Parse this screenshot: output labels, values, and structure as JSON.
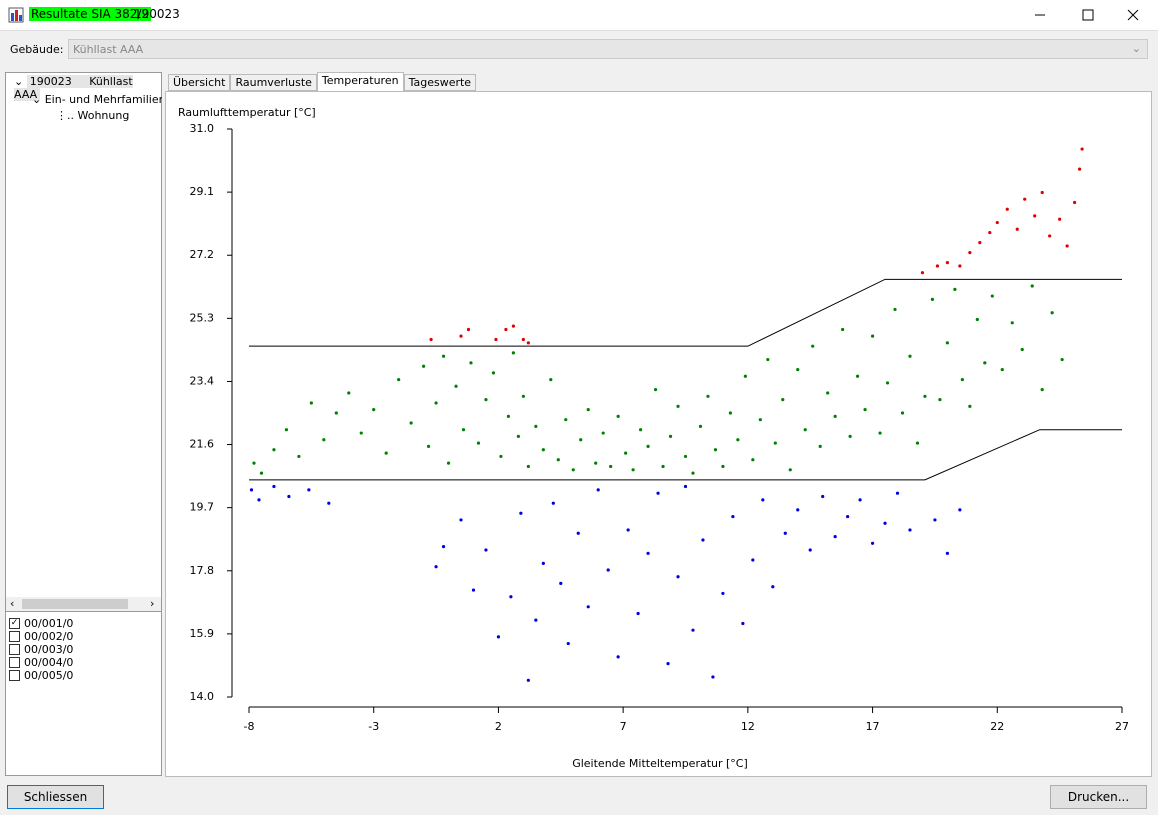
{
  "window": {
    "title_highlight": "Resultate SIA 382/2",
    "title_rest": "190023"
  },
  "building": {
    "label": "Gebäude:",
    "value": "Kühllast AAA"
  },
  "tree": {
    "root_id": "190023",
    "root_label": "Kühllast AAA",
    "child": "Ein- und Mehrfamilienhä",
    "leaf": "Wohnung"
  },
  "checkboxes": [
    {
      "label": "00/001/0",
      "checked": true
    },
    {
      "label": "00/002/0",
      "checked": false
    },
    {
      "label": "00/003/0",
      "checked": false
    },
    {
      "label": "00/004/0",
      "checked": false
    },
    {
      "label": "00/005/0",
      "checked": false
    }
  ],
  "tabs": [
    {
      "label": "Übersicht",
      "active": false
    },
    {
      "label": "Raumverluste",
      "active": false
    },
    {
      "label": "Temperaturen",
      "active": true
    },
    {
      "label": "Tageswerte",
      "active": false
    }
  ],
  "buttons": {
    "close": "Schliessen",
    "print": "Drucken..."
  },
  "chart_data": {
    "type": "scatter",
    "y_label": "Raumlufttemperatur [°C]",
    "x_label": "Gleitende Mitteltemperatur [°C]",
    "xlim": [
      -8,
      27
    ],
    "ylim": [
      14,
      31
    ],
    "xticks": [
      -8,
      -3,
      2,
      7,
      12,
      17,
      22,
      27
    ],
    "yticks": [
      {
        "value": 14,
        "label": "14.0"
      },
      {
        "value": 15.889,
        "label": "15.9"
      },
      {
        "value": 17.778,
        "label": "17.8"
      },
      {
        "value": 19.667,
        "label": "19.7"
      },
      {
        "value": 21.556,
        "label": "21.6"
      },
      {
        "value": 23.444,
        "label": "23.4"
      },
      {
        "value": 25.333,
        "label": "25.3"
      },
      {
        "value": 27.222,
        "label": "27.2"
      },
      {
        "value": 29.111,
        "label": "29.1"
      },
      {
        "value": 31,
        "label": "31.0"
      }
    ],
    "lines": [
      {
        "color": "#000000",
        "x": [
          -8,
          12,
          17.5,
          27
        ],
        "values": [
          24.5,
          24.5,
          26.5,
          26.5
        ]
      },
      {
        "color": "#000000",
        "x": [
          -8,
          19.1,
          23.7,
          27
        ],
        "values": [
          20.5,
          20.5,
          22.0,
          22.0
        ]
      }
    ],
    "series": [
      {
        "color": "#e00000",
        "x": [
          -0.7,
          0.5,
          0.8,
          1.9,
          2.3,
          2.6,
          3.0,
          3.2,
          19.0,
          19.6,
          20.0,
          20.5,
          20.9,
          21.3,
          21.7,
          22.0,
          22.4,
          22.8,
          23.1,
          23.5,
          23.8,
          24.1,
          24.5,
          24.8,
          25.1,
          25.3,
          25.4
        ],
        "values": [
          24.7,
          24.8,
          25.0,
          24.7,
          25.0,
          25.1,
          24.7,
          24.6,
          26.7,
          26.9,
          27.0,
          26.9,
          27.3,
          27.6,
          27.9,
          28.2,
          28.6,
          28.0,
          28.9,
          28.4,
          29.1,
          27.8,
          28.3,
          27.5,
          28.8,
          29.8,
          30.4
        ]
      },
      {
        "color": "#008000",
        "x": [
          -7.8,
          -7.5,
          -7.0,
          -6.5,
          -6.0,
          -5.5,
          -5.0,
          -4.5,
          -4.0,
          -3.5,
          -3.0,
          -2.5,
          -2.0,
          -1.5,
          -1.0,
          -0.8,
          -0.5,
          -0.2,
          0.0,
          0.3,
          0.6,
          0.9,
          1.2,
          1.5,
          1.8,
          2.1,
          2.4,
          2.6,
          2.8,
          3.0,
          3.2,
          3.5,
          3.8,
          4.1,
          4.4,
          4.7,
          5.0,
          5.3,
          5.6,
          5.9,
          6.2,
          6.5,
          6.8,
          7.1,
          7.4,
          7.7,
          8.0,
          8.3,
          8.6,
          8.9,
          9.2,
          9.5,
          9.8,
          10.1,
          10.4,
          10.7,
          11.0,
          11.3,
          11.6,
          11.9,
          12.2,
          12.5,
          12.8,
          13.1,
          13.4,
          13.7,
          14.0,
          14.3,
          14.6,
          14.9,
          15.2,
          15.5,
          15.8,
          16.1,
          16.4,
          16.7,
          17.0,
          17.3,
          17.6,
          17.9,
          18.2,
          18.5,
          18.8,
          19.1,
          19.4,
          19.7,
          20.0,
          20.3,
          20.6,
          20.9,
          21.2,
          21.5,
          21.8,
          22.2,
          22.6,
          23.0,
          23.4,
          23.8,
          24.2,
          24.6
        ],
        "values": [
          21.0,
          20.7,
          21.4,
          22.0,
          21.2,
          22.8,
          21.7,
          22.5,
          23.1,
          21.9,
          22.6,
          21.3,
          23.5,
          22.2,
          23.9,
          21.5,
          22.8,
          24.2,
          21.0,
          23.3,
          22.0,
          24.0,
          21.6,
          22.9,
          23.7,
          21.2,
          22.4,
          24.3,
          21.8,
          23.0,
          20.9,
          22.1,
          21.4,
          23.5,
          21.1,
          22.3,
          20.8,
          21.7,
          22.6,
          21.0,
          21.9,
          20.9,
          22.4,
          21.3,
          20.8,
          22.0,
          21.5,
          23.2,
          20.9,
          21.8,
          22.7,
          21.2,
          20.7,
          22.1,
          23.0,
          21.4,
          20.9,
          22.5,
          21.7,
          23.6,
          21.1,
          22.3,
          24.1,
          21.6,
          22.9,
          20.8,
          23.8,
          22.0,
          24.5,
          21.5,
          23.1,
          22.4,
          25.0,
          21.8,
          23.6,
          22.6,
          24.8,
          21.9,
          23.4,
          25.6,
          22.5,
          24.2,
          21.6,
          23.0,
          25.9,
          22.9,
          24.6,
          26.2,
          23.5,
          22.7,
          25.3,
          24.0,
          26.0,
          23.8,
          25.2,
          24.4,
          26.3,
          23.2,
          25.5,
          24.1
        ]
      },
      {
        "color": "#0000e0",
        "x": [
          -7.9,
          -7.6,
          -7.0,
          -6.4,
          -5.6,
          -4.8,
          -0.5,
          -0.2,
          0.5,
          1.0,
          1.5,
          2.0,
          2.5,
          2.9,
          3.2,
          3.5,
          3.8,
          4.2,
          4.5,
          4.8,
          5.2,
          5.6,
          6.0,
          6.4,
          6.8,
          7.2,
          7.6,
          8.0,
          8.4,
          8.8,
          9.2,
          9.5,
          9.8,
          10.2,
          10.6,
          11.0,
          11.4,
          11.8,
          12.2,
          12.6,
          13.0,
          13.5,
          14.0,
          14.5,
          15.0,
          15.5,
          16.0,
          16.5,
          17.0,
          17.5,
          18.0,
          18.5,
          19.5,
          20.0,
          20.5
        ],
        "values": [
          20.2,
          19.9,
          20.3,
          20.0,
          20.2,
          19.8,
          17.9,
          18.5,
          19.3,
          17.2,
          18.4,
          15.8,
          17.0,
          19.5,
          14.5,
          16.3,
          18.0,
          19.8,
          17.4,
          15.6,
          18.9,
          16.7,
          20.2,
          17.8,
          15.2,
          19.0,
          16.5,
          18.3,
          20.1,
          15.0,
          17.6,
          20.3,
          16.0,
          18.7,
          14.6,
          17.1,
          19.4,
          16.2,
          18.1,
          19.9,
          17.3,
          18.9,
          19.6,
          18.4,
          20.0,
          18.8,
          19.4,
          19.9,
          18.6,
          19.2,
          20.1,
          19.0,
          19.3,
          18.3,
          19.6
        ]
      }
    ]
  }
}
